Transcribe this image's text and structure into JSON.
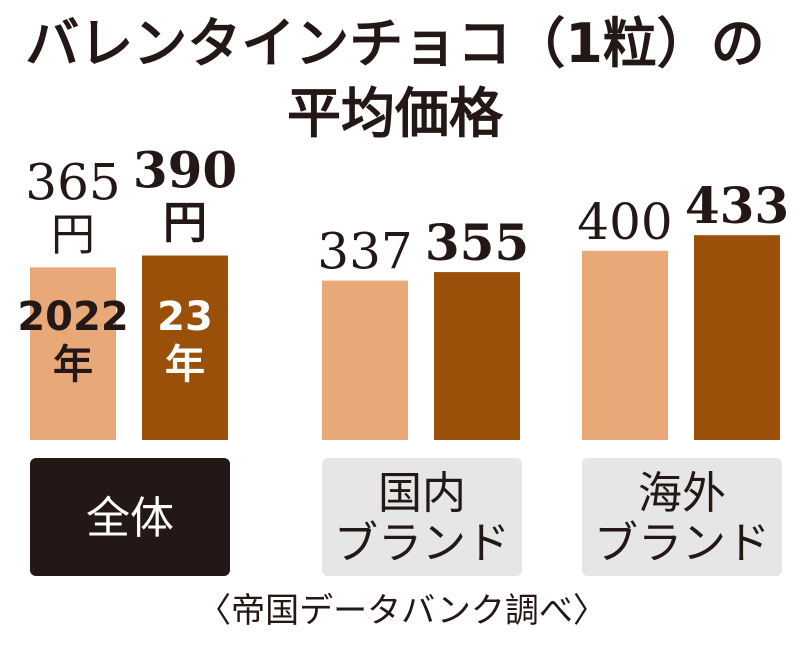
{
  "chart_data": {
    "type": "bar",
    "title_lines": [
      "バレンタインチョコ（1粒）の",
      "平均価格"
    ],
    "categories": [
      {
        "name": "全体",
        "lines": [
          "全体"
        ],
        "style": "dark"
      },
      {
        "name": "国内ブランド",
        "lines": [
          "国内",
          "ブランド"
        ],
        "style": "light"
      },
      {
        "name": "海外ブランド",
        "lines": [
          "海外",
          "ブランド"
        ],
        "style": "light"
      }
    ],
    "series": [
      {
        "name": "2022年",
        "label_lines": [
          "2022",
          "年"
        ],
        "values": [
          365,
          337,
          400
        ],
        "color": "#E9A878"
      },
      {
        "name": "23年",
        "label_lines": [
          "23",
          "年"
        ],
        "values": [
          390,
          355,
          433
        ],
        "color": "#9A5008"
      }
    ],
    "unit": "円",
    "source": "〈帝国データバンク調べ〉"
  },
  "colors": {
    "light_bar": "#E9A878",
    "dark_bar": "#9A5008",
    "dark_label_bg": "#231815",
    "light_label_bg": "#E6E6E6",
    "text": "#231815"
  }
}
